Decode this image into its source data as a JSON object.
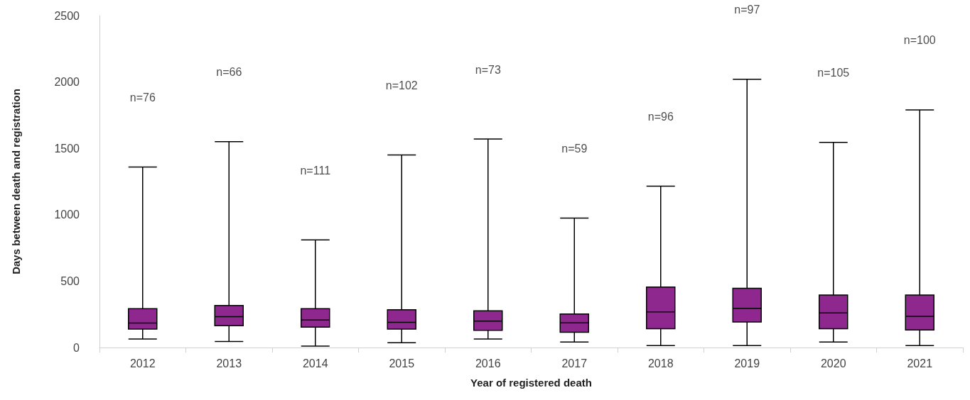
{
  "chart_data": {
    "type": "box",
    "xlabel": "Year of registered death",
    "ylabel": "Days between death and registration",
    "categories": [
      "2012",
      "2013",
      "2014",
      "2015",
      "2016",
      "2017",
      "2018",
      "2019",
      "2020",
      "2021"
    ],
    "color": "#8e278e",
    "boxes": [
      {
        "low": 64,
        "q1": 139,
        "median": 184,
        "q3": 293,
        "high": 1360
      },
      {
        "low": 45,
        "q1": 164,
        "median": 233,
        "q3": 316,
        "high": 1550
      },
      {
        "low": 11,
        "q1": 154,
        "median": 207,
        "q3": 293,
        "high": 810
      },
      {
        "low": 36,
        "q1": 139,
        "median": 190,
        "q3": 284,
        "high": 1450
      },
      {
        "low": 64,
        "q1": 130,
        "median": 199,
        "q3": 276,
        "high": 1570
      },
      {
        "low": 41,
        "q1": 115,
        "median": 186,
        "q3": 252,
        "high": 975
      },
      {
        "low": 15,
        "q1": 141,
        "median": 269,
        "q3": 455,
        "high": 1215
      },
      {
        "low": 15,
        "q1": 192,
        "median": 295,
        "q3": 446,
        "high": 2020
      },
      {
        "low": 41,
        "q1": 141,
        "median": 261,
        "q3": 395,
        "high": 1545
      },
      {
        "low": 15,
        "q1": 132,
        "median": 235,
        "q3": 395,
        "high": 1790
      }
    ],
    "ylim": [
      0,
      2500
    ],
    "yticks": [
      0,
      500,
      1000,
      1500,
      2000,
      2500
    ],
    "grid": false,
    "annotations": [
      "n=76",
      "n=66",
      "n=111",
      "n=102",
      "n=73",
      "n=59",
      "n=96",
      "n=97",
      "n=105",
      "n=100"
    ]
  }
}
